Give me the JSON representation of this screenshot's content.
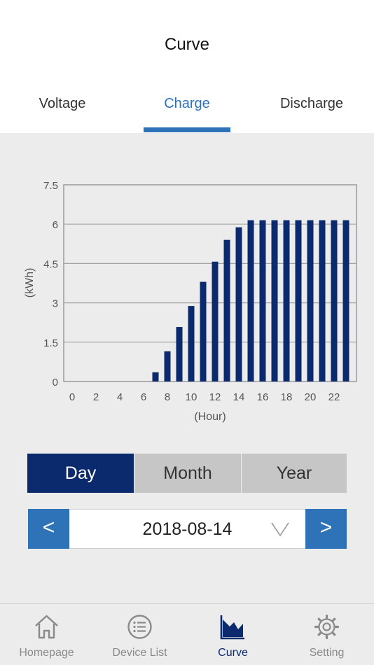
{
  "header": {
    "title": "Curve"
  },
  "tabs": [
    {
      "label": "Voltage"
    },
    {
      "label": "Charge"
    },
    {
      "label": "Discharge"
    }
  ],
  "active_tab": 1,
  "colors": {
    "accent": "#2e73b8",
    "bar": "#0b2a6e",
    "inactive": "#8a8a8a"
  },
  "chart_data": {
    "type": "bar",
    "x": [
      0,
      1,
      2,
      3,
      4,
      5,
      6,
      7,
      8,
      9,
      10,
      11,
      12,
      13,
      14,
      15,
      16,
      17,
      18,
      19,
      20,
      21,
      22,
      23
    ],
    "values": [
      0,
      0,
      0,
      0,
      0,
      0,
      0,
      0.35,
      1.15,
      2.08,
      2.88,
      3.8,
      4.57,
      5.4,
      5.88,
      6.15,
      6.15,
      6.15,
      6.15,
      6.15,
      6.15,
      6.15,
      6.15,
      6.15
    ],
    "x_tick_labels": [
      "0",
      "2",
      "4",
      "6",
      "8",
      "10",
      "12",
      "14",
      "16",
      "18",
      "20",
      "22"
    ],
    "y_ticks": [
      0,
      1.5,
      3,
      4.5,
      6,
      7.5
    ],
    "y_tick_labels": [
      "0",
      "1.5",
      "3",
      "4.5",
      "6",
      "7.5"
    ],
    "xlabel": "(Hour)",
    "ylabel": "(kWh)",
    "ylim": [
      0,
      7.5
    ],
    "grid": true
  },
  "period": {
    "options": [
      {
        "label": "Day"
      },
      {
        "label": "Month"
      },
      {
        "label": "Year"
      }
    ],
    "selected": 0
  },
  "date_nav": {
    "prev": "<",
    "next": ">",
    "date": "2018-08-14"
  },
  "bottom_nav": [
    {
      "label": "Homepage",
      "icon": "home-icon"
    },
    {
      "label": "Device List",
      "icon": "list-icon"
    },
    {
      "label": "Curve",
      "icon": "area-chart-icon"
    },
    {
      "label": "Setting",
      "icon": "gear-icon"
    }
  ],
  "active_nav": 2
}
